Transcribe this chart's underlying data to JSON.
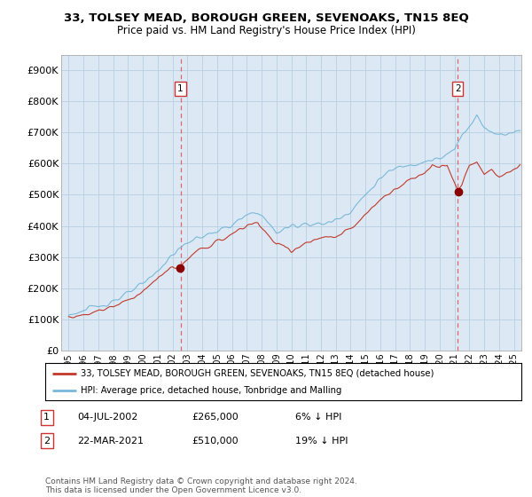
{
  "title": "33, TOLSEY MEAD, BOROUGH GREEN, SEVENOAKS, TN15 8EQ",
  "subtitle": "Price paid vs. HM Land Registry's House Price Index (HPI)",
  "ylabel_ticks": [
    "£0",
    "£100K",
    "£200K",
    "£300K",
    "£400K",
    "£500K",
    "£600K",
    "£700K",
    "£800K",
    "£900K"
  ],
  "ytick_values": [
    0,
    100000,
    200000,
    300000,
    400000,
    500000,
    600000,
    700000,
    800000,
    900000
  ],
  "ylim": [
    0,
    950000
  ],
  "sale1_date_x": 2002.54,
  "sale1_price": 265000,
  "sale1_label": "1",
  "sale1_text": "04-JUL-2002",
  "sale1_amount": "£265,000",
  "sale1_pct": "6% ↓ HPI",
  "sale2_date_x": 2021.21,
  "sale2_price": 510000,
  "sale2_label": "2",
  "sale2_text": "22-MAR-2021",
  "sale2_amount": "£510,000",
  "sale2_pct": "19% ↓ HPI",
  "legend_line1": "33, TOLSEY MEAD, BOROUGH GREEN, SEVENOAKS, TN15 8EQ (detached house)",
  "legend_line2": "HPI: Average price, detached house, Tonbridge and Malling",
  "footnote": "Contains HM Land Registry data © Crown copyright and database right 2024.\nThis data is licensed under the Open Government Licence v3.0.",
  "hpi_color": "#7ab8d9",
  "price_color": "#c0392b",
  "vline_color": "#e05050",
  "background_color": "#ffffff",
  "plot_bg_color": "#dce9f5",
  "grid_color": "#b8cfe0",
  "xlim_start": 1994.5,
  "xlim_end": 2025.5,
  "title_fontsize": 9.5,
  "subtitle_fontsize": 8.5
}
